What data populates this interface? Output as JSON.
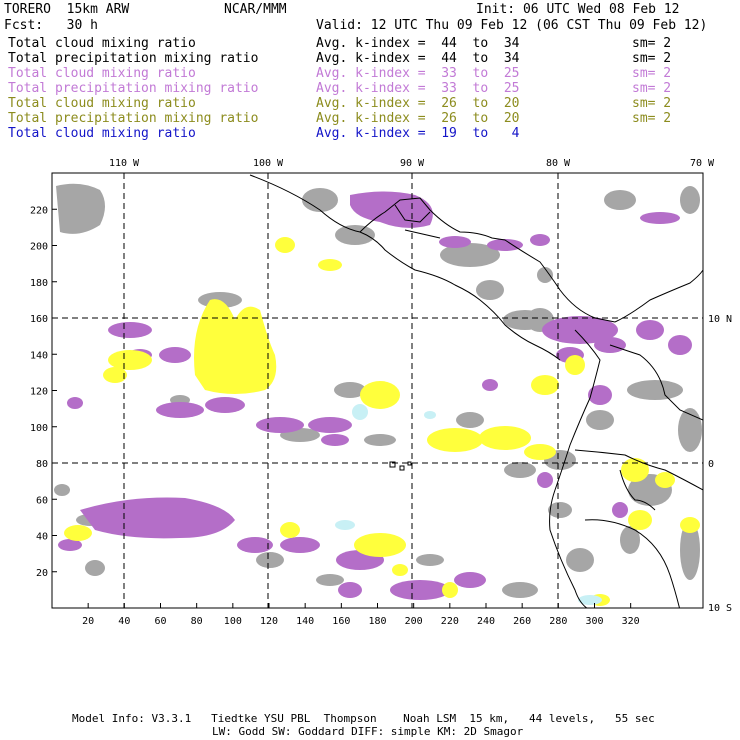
{
  "header": {
    "model": "TORERO  15km ARW",
    "center": "NCAR/MMM",
    "init": "Init: 06 UTC Wed 08 Feb 12",
    "fcst": "Fcst:   30 h",
    "valid": "Valid: 12 UTC Thu 09 Feb 12 (06 CST Thu 09 Feb 12)"
  },
  "legend": [
    {
      "field": "Total cloud mixing ratio",
      "stat": "Avg. k-index =  44  to  34",
      "sm": "sm= 2",
      "color": "#000000"
    },
    {
      "field": "Total precipitation mixing ratio",
      "stat": "Avg. k-index =  44  to  34",
      "sm": "sm= 2",
      "color": "#000000"
    },
    {
      "field": "Total cloud mixing ratio",
      "stat": "Avg. k-index =  33  to  25",
      "sm": "sm= 2",
      "color": "#c27ad6"
    },
    {
      "field": "Total precipitation mixing ratio",
      "stat": "Avg. k-index =  33  to  25",
      "sm": "sm= 2",
      "color": "#c27ad6"
    },
    {
      "field": "Total cloud mixing ratio",
      "stat": "Avg. k-index =  26  to  20",
      "sm": "sm= 2",
      "color": "#8c8c1e"
    },
    {
      "field": "Total precipitation mixing ratio",
      "stat": "Avg. k-index =  26  to  20",
      "sm": "sm= 2",
      "color": "#8c8c1e"
    },
    {
      "field": "Total cloud mixing ratio",
      "stat": "Avg. k-index =  19  to   4",
      "sm": "",
      "color": "#1414c8"
    }
  ],
  "map": {
    "top_lon_labels": [
      "110 W",
      "100 W",
      "90 W",
      "80 W",
      "70 W"
    ],
    "right_lat_labels": [
      "10 N",
      "0",
      "10 S"
    ],
    "left_grid_labels": [
      "220",
      "200",
      "180",
      "160",
      "140",
      "120",
      "100",
      "80",
      "60",
      "40",
      "20"
    ],
    "bottom_grid_labels": [
      "20",
      "40",
      "60",
      "80",
      "100",
      "120",
      "140",
      "160",
      "180",
      "200",
      "220",
      "240",
      "260",
      "280",
      "300",
      "320"
    ],
    "colors": {
      "gray": "#a6a6a6",
      "purple": "#b46ec8",
      "yellow": "#ffff3c",
      "cyan": "#c8f0f5",
      "coast": "#000000"
    }
  },
  "footer": {
    "line1": "Model Info: V3.3.1   Tiedtke YSU PBL  Thompson    Noah LSM  15 km,   44 levels,   55 sec",
    "line2": "LW: Godd SW: Goddard DIFF: simple KM: 2D Smagor"
  }
}
